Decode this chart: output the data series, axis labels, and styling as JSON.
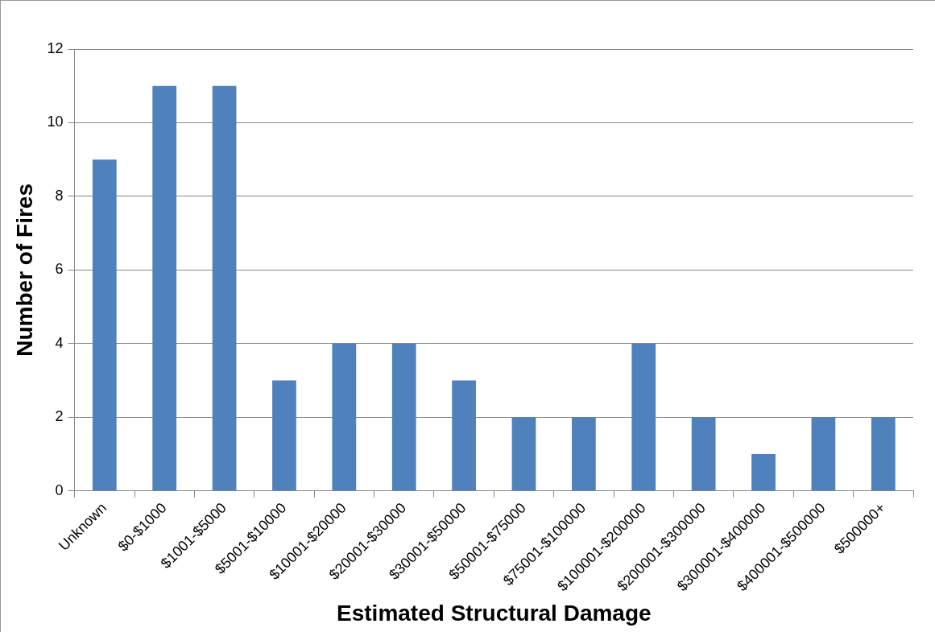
{
  "chart_data": {
    "type": "bar",
    "xlabel": "Estimated Structural Damage",
    "ylabel": "Number of Fires",
    "categories": [
      "Unknown",
      "$0-$1000",
      "$1001-$5000",
      "$5001-$10000",
      "$10001-$20000",
      "$20001-$30000",
      "$30001-$50000",
      "$50001-$75000",
      "$75001-$100000",
      "$100001-$200000",
      "$200001-$300000",
      "$300001-$400000",
      "$400001-$500000",
      "$500000+"
    ],
    "values": [
      9,
      11,
      11,
      3,
      4,
      4,
      3,
      2,
      2,
      4,
      2,
      1,
      2,
      2
    ],
    "color": "#4f81bd",
    "ylim": [
      0,
      12
    ],
    "yticks": [
      0,
      2,
      4,
      6,
      8,
      10,
      12
    ],
    "grid": "y",
    "legend": false
  }
}
